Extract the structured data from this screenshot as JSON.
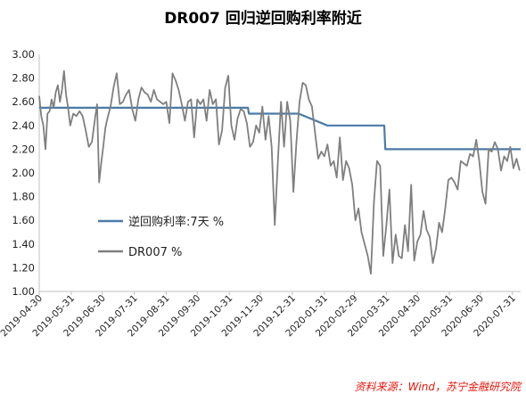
{
  "title": "DR007 回归逆回购利率附近",
  "source": "资料来源：Wind，苏宁金融研究院",
  "colors": {
    "policy": "#4a7ba7",
    "dr007": "#7f7f7f",
    "source": "#e8160c"
  },
  "chart_data": {
    "type": "line",
    "title": "DR007 回归逆回购利率附近",
    "ylim": [
      1.0,
      3.0
    ],
    "yticks": [
      "1.00",
      "1.20",
      "1.40",
      "1.60",
      "1.80",
      "2.00",
      "2.20",
      "2.40",
      "2.60",
      "2.80",
      "3.00"
    ],
    "xdomain": [
      "2019-04-30",
      "2020-08-08"
    ],
    "xticks": [
      "2019-04-30",
      "2019-05-31",
      "2019-06-30",
      "2019-07-31",
      "2019-08-31",
      "2019-09-30",
      "2019-10-31",
      "2019-11-30",
      "2019-12-31",
      "2020-01-31",
      "2020-02-29",
      "2020-03-31",
      "2020-04-30",
      "2020-05-31",
      "2020-06-30",
      "2020-07-31"
    ],
    "legend_placement": "center-left",
    "grid": false,
    "series": [
      {
        "name": "逆回购利率:7天  %",
        "color": "#4a7ba7",
        "x": [
          "2019-04-30",
          "2019-11-18",
          "2019-11-19",
          "2019-12-31",
          "2020-01-06",
          "2020-02-03",
          "2020-03-29",
          "2020-03-30",
          "2020-08-08"
        ],
        "y": [
          2.55,
          2.55,
          2.5,
          2.5,
          2.5,
          2.4,
          2.4,
          2.2,
          2.2
        ]
      },
      {
        "name": "DR007 %",
        "color": "#7f7f7f",
        "x": [
          "2019-04-30",
          "2019-05-02",
          "2019-05-04",
          "2019-05-06",
          "2019-05-08",
          "2019-05-10",
          "2019-05-12",
          "2019-05-14",
          "2019-05-16",
          "2019-05-18",
          "2019-05-20",
          "2019-05-22",
          "2019-05-24",
          "2019-05-26",
          "2019-05-28",
          "2019-05-30",
          "2019-06-02",
          "2019-06-05",
          "2019-06-08",
          "2019-06-11",
          "2019-06-14",
          "2019-06-17",
          "2019-06-20",
          "2019-06-23",
          "2019-06-25",
          "2019-06-27",
          "2019-06-29",
          "2019-07-01",
          "2019-07-03",
          "2019-07-05",
          "2019-07-08",
          "2019-07-11",
          "2019-07-14",
          "2019-07-17",
          "2019-07-20",
          "2019-07-23",
          "2019-07-26",
          "2019-07-29",
          "2019-08-01",
          "2019-08-04",
          "2019-08-07",
          "2019-08-10",
          "2019-08-13",
          "2019-08-16",
          "2019-08-19",
          "2019-08-22",
          "2019-08-25",
          "2019-08-28",
          "2019-08-31",
          "2019-09-03",
          "2019-09-06",
          "2019-09-09",
          "2019-09-12",
          "2019-09-15",
          "2019-09-18",
          "2019-09-21",
          "2019-09-24",
          "2019-09-27",
          "2019-09-30",
          "2019-10-03",
          "2019-10-06",
          "2019-10-09",
          "2019-10-12",
          "2019-10-15",
          "2019-10-18",
          "2019-10-21",
          "2019-10-24",
          "2019-10-27",
          "2019-10-30",
          "2019-11-02",
          "2019-11-05",
          "2019-11-08",
          "2019-11-11",
          "2019-11-14",
          "2019-11-17",
          "2019-11-20",
          "2019-11-23",
          "2019-11-26",
          "2019-11-29",
          "2019-12-02",
          "2019-12-05",
          "2019-12-08",
          "2019-12-11",
          "2019-12-14",
          "2019-12-17",
          "2019-12-20",
          "2019-12-23",
          "2019-12-26",
          "2019-12-29",
          "2020-01-01",
          "2020-01-04",
          "2020-01-07",
          "2020-01-10",
          "2020-01-13",
          "2020-01-16",
          "2020-01-19",
          "2020-01-22",
          "2020-01-25",
          "2020-01-28",
          "2020-01-31",
          "2020-02-03",
          "2020-02-06",
          "2020-02-09",
          "2020-02-12",
          "2020-02-15",
          "2020-02-18",
          "2020-02-21",
          "2020-02-24",
          "2020-02-27",
          "2020-03-01",
          "2020-03-04",
          "2020-03-07",
          "2020-03-10",
          "2020-03-13",
          "2020-03-16",
          "2020-03-19",
          "2020-03-22",
          "2020-03-25",
          "2020-03-28",
          "2020-03-31",
          "2020-04-03",
          "2020-04-06",
          "2020-04-09",
          "2020-04-12",
          "2020-04-15",
          "2020-04-18",
          "2020-04-21",
          "2020-04-24",
          "2020-04-27",
          "2020-04-30",
          "2020-05-03",
          "2020-05-06",
          "2020-05-09",
          "2020-05-12",
          "2020-05-15",
          "2020-05-18",
          "2020-05-21",
          "2020-05-24",
          "2020-05-27",
          "2020-05-30",
          "2020-06-02",
          "2020-06-05",
          "2020-06-08",
          "2020-06-11",
          "2020-06-14",
          "2020-06-17",
          "2020-06-20",
          "2020-06-23",
          "2020-06-26",
          "2020-06-29",
          "2020-07-02",
          "2020-07-05",
          "2020-07-08",
          "2020-07-11",
          "2020-07-14",
          "2020-07-17",
          "2020-07-20",
          "2020-07-23",
          "2020-07-26",
          "2020-07-29",
          "2020-08-01",
          "2020-08-04",
          "2020-08-07"
        ],
        "y": [
          2.65,
          2.48,
          2.4,
          2.2,
          2.5,
          2.52,
          2.62,
          2.55,
          2.68,
          2.74,
          2.6,
          2.7,
          2.86,
          2.66,
          2.55,
          2.4,
          2.5,
          2.48,
          2.52,
          2.48,
          2.36,
          2.22,
          2.26,
          2.46,
          2.58,
          1.92,
          2.08,
          2.22,
          2.38,
          2.46,
          2.56,
          2.72,
          2.84,
          2.58,
          2.6,
          2.66,
          2.7,
          2.54,
          2.44,
          2.62,
          2.72,
          2.68,
          2.66,
          2.6,
          2.7,
          2.62,
          2.6,
          2.58,
          2.6,
          2.42,
          2.84,
          2.78,
          2.7,
          2.58,
          2.44,
          2.6,
          2.62,
          2.3,
          2.62,
          2.58,
          2.62,
          2.44,
          2.7,
          2.58,
          2.62,
          2.24,
          2.36,
          2.72,
          2.82,
          2.4,
          2.28,
          2.46,
          2.54,
          2.52,
          2.42,
          2.22,
          2.26,
          2.4,
          2.34,
          2.56,
          2.28,
          2.48,
          2.22,
          1.56,
          2.1,
          2.6,
          2.22,
          2.6,
          2.44,
          1.84,
          2.26,
          2.6,
          2.76,
          2.74,
          2.62,
          2.56,
          2.34,
          2.12,
          2.18,
          2.14,
          2.24,
          2.06,
          2.1,
          1.96,
          2.3,
          1.94,
          2.1,
          2.04,
          1.9,
          1.6,
          1.7,
          1.5,
          1.4,
          1.3,
          1.15,
          1.76,
          2.1,
          2.06,
          1.3,
          1.56,
          1.86,
          1.24,
          1.48,
          1.3,
          1.28,
          1.56,
          1.34,
          1.9,
          1.26,
          1.42,
          1.48,
          1.68,
          1.52,
          1.46,
          1.24,
          1.36,
          1.58,
          1.5,
          1.7,
          1.94,
          1.96,
          1.92,
          1.86,
          2.1,
          2.08,
          2.06,
          2.16,
          2.14,
          2.28,
          2.1,
          1.84,
          1.74,
          2.2,
          2.18,
          2.26,
          2.2,
          2.02,
          2.14,
          2.1,
          2.22,
          2.04,
          2.12,
          2.02
        ]
      }
    ]
  }
}
